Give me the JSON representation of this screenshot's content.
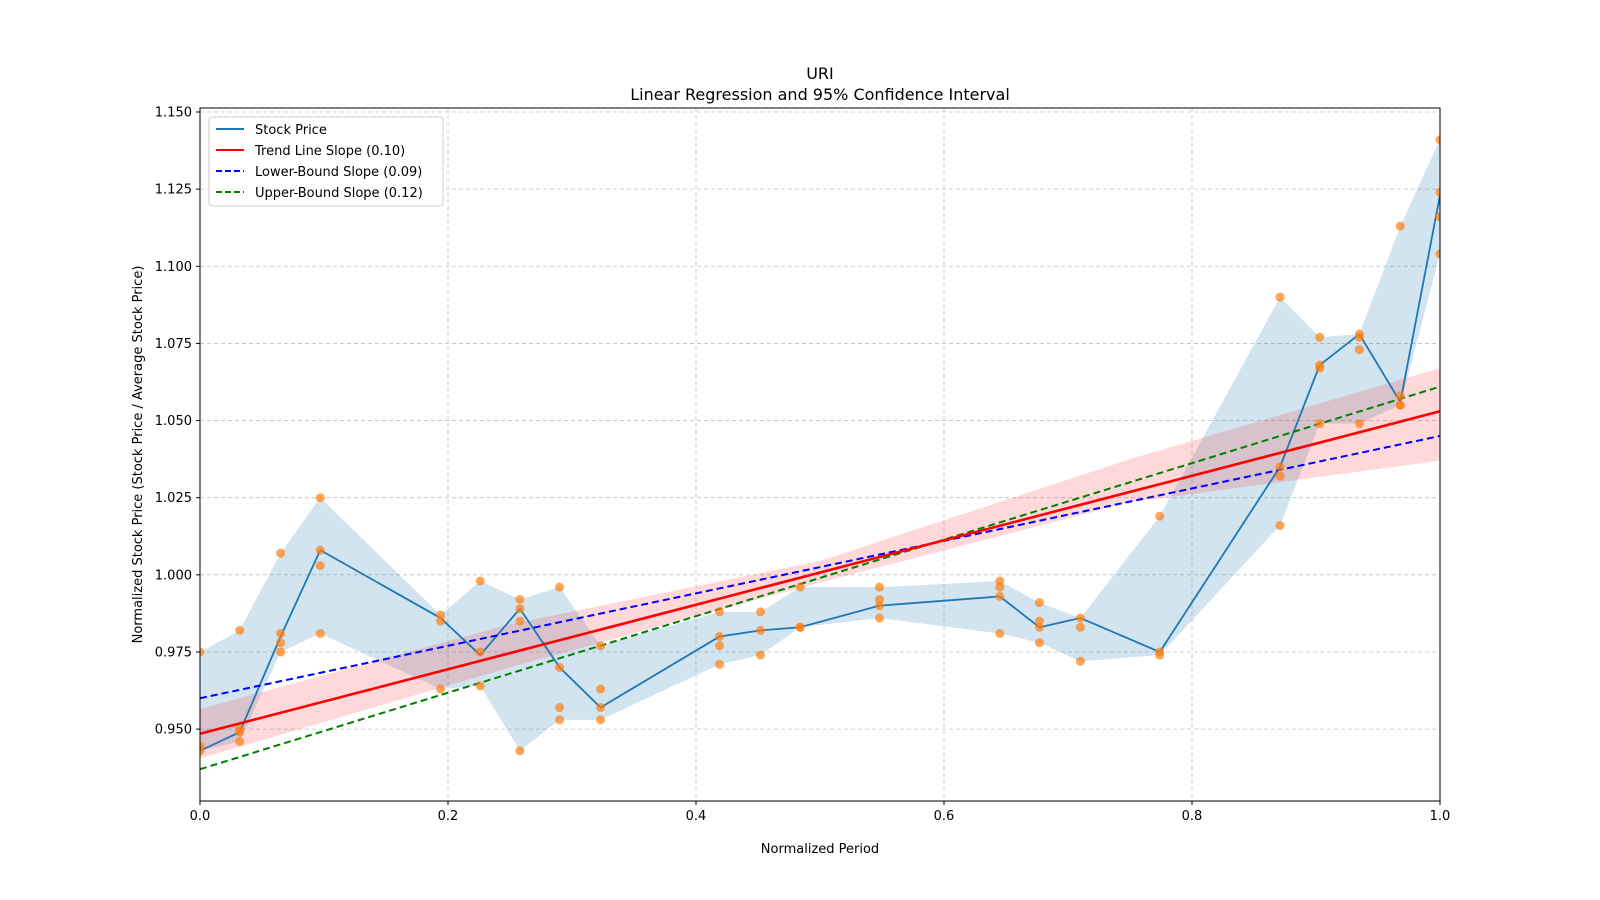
{
  "chart_data": {
    "type": "line",
    "title_line1": "URI",
    "title_line2": "Linear Regression and 95% Confidence Interval",
    "xlabel": "Normalized Period",
    "ylabel": "Normalized Stock Price (Stock Price / Average Stock Price)",
    "xlim": [
      0.0,
      1.0
    ],
    "ylim": [
      0.9267,
      1.1513
    ],
    "grid": true,
    "legend_placement": "top-left",
    "x_ticks": [
      "0.0",
      "0.2",
      "0.4",
      "0.6",
      "0.8",
      "1.0"
    ],
    "x_tick_values": [
      0.0,
      0.2,
      0.4,
      0.6,
      0.8,
      1.0
    ],
    "y_ticks": [
      "0.950",
      "0.975",
      "1.000",
      "1.025",
      "1.050",
      "1.075",
      "1.100",
      "1.125",
      "1.150"
    ],
    "y_tick_values": [
      0.95,
      0.975,
      1.0,
      1.025,
      1.05,
      1.075,
      1.1,
      1.125,
      1.15
    ],
    "legend": [
      {
        "label": "Stock Price",
        "color": "#1f77b4",
        "style": "solid"
      },
      {
        "label": "Trend Line Slope (0.10)",
        "color": "#ff0000",
        "style": "solid"
      },
      {
        "label": "Lower-Bound Slope (0.09)",
        "color": "#0000ff",
        "style": "dashed"
      },
      {
        "label": "Upper-Bound Slope (0.12)",
        "color": "#008000",
        "style": "dashed"
      }
    ],
    "scatter": [
      {
        "x": 0.0,
        "y": [
          0.975,
          0.9445,
          0.943
        ]
      },
      {
        "x": 0.032,
        "y": [
          0.982,
          0.95,
          0.949,
          0.946
        ]
      },
      {
        "x": 0.065,
        "y": [
          1.007,
          0.981,
          0.978,
          0.975
        ]
      },
      {
        "x": 0.097,
        "y": [
          1.025,
          1.008,
          1.003,
          0.981
        ]
      },
      {
        "x": 0.194,
        "y": [
          0.987,
          0.985,
          0.963
        ]
      },
      {
        "x": 0.226,
        "y": [
          0.998,
          0.975,
          0.964
        ]
      },
      {
        "x": 0.258,
        "y": [
          0.992,
          0.989,
          0.985,
          0.943
        ]
      },
      {
        "x": 0.29,
        "y": [
          0.996,
          0.97,
          0.957,
          0.953
        ]
      },
      {
        "x": 0.323,
        "y": [
          0.977,
          0.963,
          0.957,
          0.953
        ]
      },
      {
        "x": 0.419,
        "y": [
          0.988,
          0.98,
          0.977,
          0.971
        ]
      },
      {
        "x": 0.452,
        "y": [
          0.988,
          0.982,
          0.974
        ]
      },
      {
        "x": 0.484,
        "y": [
          0.996,
          0.983,
          0.983
        ]
      },
      {
        "x": 0.548,
        "y": [
          0.996,
          0.992,
          0.99,
          0.986
        ]
      },
      {
        "x": 0.645,
        "y": [
          0.998,
          0.996,
          0.993,
          0.981
        ]
      },
      {
        "x": 0.677,
        "y": [
          0.991,
          0.985,
          0.983,
          0.978
        ]
      },
      {
        "x": 0.71,
        "y": [
          0.986,
          0.983,
          0.972
        ]
      },
      {
        "x": 0.774,
        "y": [
          1.019,
          0.975,
          0.974
        ]
      },
      {
        "x": 0.871,
        "y": [
          1.09,
          1.035,
          1.032,
          1.016
        ]
      },
      {
        "x": 0.903,
        "y": [
          1.077,
          1.068,
          1.067,
          1.049
        ]
      },
      {
        "x": 0.935,
        "y": [
          1.078,
          1.077,
          1.073,
          1.049
        ]
      },
      {
        "x": 0.968,
        "y": [
          1.113,
          1.058,
          1.055,
          1.055
        ]
      },
      {
        "x": 1.0,
        "y": [
          1.141,
          1.124,
          1.116,
          1.104
        ]
      }
    ],
    "stock_price_line": {
      "x": [
        0.0,
        0.032,
        0.065,
        0.097,
        0.194,
        0.226,
        0.258,
        0.29,
        0.323,
        0.419,
        0.452,
        0.484,
        0.548,
        0.645,
        0.677,
        0.71,
        0.774,
        0.871,
        0.903,
        0.935,
        0.968,
        1.0
      ],
      "y": [
        0.943,
        0.949,
        0.98,
        1.008,
        0.986,
        0.974,
        0.989,
        0.97,
        0.957,
        0.98,
        0.982,
        0.983,
        0.99,
        0.993,
        0.983,
        0.986,
        0.975,
        1.035,
        1.068,
        1.078,
        1.056,
        1.123
      ]
    },
    "stock_price_band": {
      "low": [
        0.943,
        0.946,
        0.975,
        0.981,
        0.963,
        0.964,
        0.943,
        0.953,
        0.953,
        0.971,
        0.974,
        0.983,
        0.986,
        0.981,
        0.978,
        0.972,
        0.974,
        1.016,
        1.049,
        1.049,
        1.055,
        1.104
      ],
      "high": [
        0.975,
        0.982,
        1.007,
        1.025,
        0.987,
        0.998,
        0.992,
        0.996,
        0.977,
        0.988,
        0.988,
        0.996,
        0.996,
        0.998,
        0.991,
        0.986,
        1.019,
        1.09,
        1.077,
        1.078,
        1.113,
        1.141
      ]
    },
    "trend_line": {
      "x": [
        0.0,
        1.0
      ],
      "y": [
        0.9485,
        1.053
      ]
    },
    "trend_ci": {
      "x": [
        0.0,
        0.25,
        0.5,
        0.75,
        1.0
      ],
      "low": [
        0.9405,
        0.97,
        0.9975,
        1.0235,
        1.037
      ],
      "high": [
        0.9565,
        0.984,
        1.0045,
        1.0375,
        1.067
      ]
    },
    "lower_bound_line": {
      "x": [
        0.0,
        1.0
      ],
      "y": [
        0.96,
        1.045
      ]
    },
    "upper_bound_line": {
      "x": [
        0.0,
        1.0
      ],
      "y": [
        0.937,
        1.061
      ]
    }
  }
}
